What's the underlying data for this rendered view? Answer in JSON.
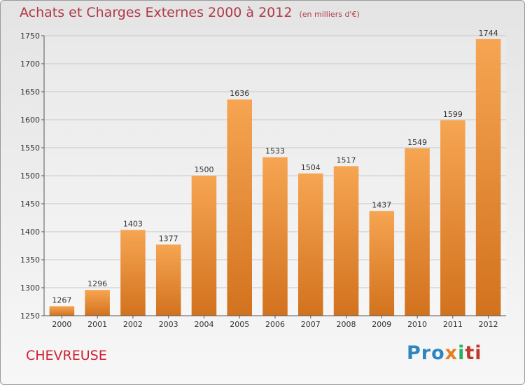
{
  "chart_data": {
    "type": "bar",
    "title": "Achats et Charges Externes 2000 à 2012",
    "subtitle": "(en milliers d'€)",
    "categories": [
      "2000",
      "2001",
      "2002",
      "2003",
      "2004",
      "2005",
      "2006",
      "2007",
      "2008",
      "2009",
      "2010",
      "2011",
      "2012"
    ],
    "values": [
      1267,
      1296,
      1403,
      1377,
      1500,
      1636,
      1533,
      1504,
      1517,
      1437,
      1549,
      1599,
      1744
    ],
    "ylim": [
      1250,
      1750
    ],
    "yticks": [
      1250,
      1300,
      1350,
      1400,
      1450,
      1500,
      1550,
      1600,
      1650,
      1700,
      1750
    ],
    "grid": true,
    "bar_color_top": "#f6a552",
    "bar_color_bottom": "#d2721e",
    "xlabel": "",
    "ylabel": ""
  },
  "commune": "CHEVREUSE",
  "logo": {
    "parts": [
      "Pro",
      "x",
      "i",
      "ti"
    ],
    "colors": [
      "#2e86c1",
      "#e67e22",
      "#27ae60",
      "#c0392b"
    ]
  }
}
